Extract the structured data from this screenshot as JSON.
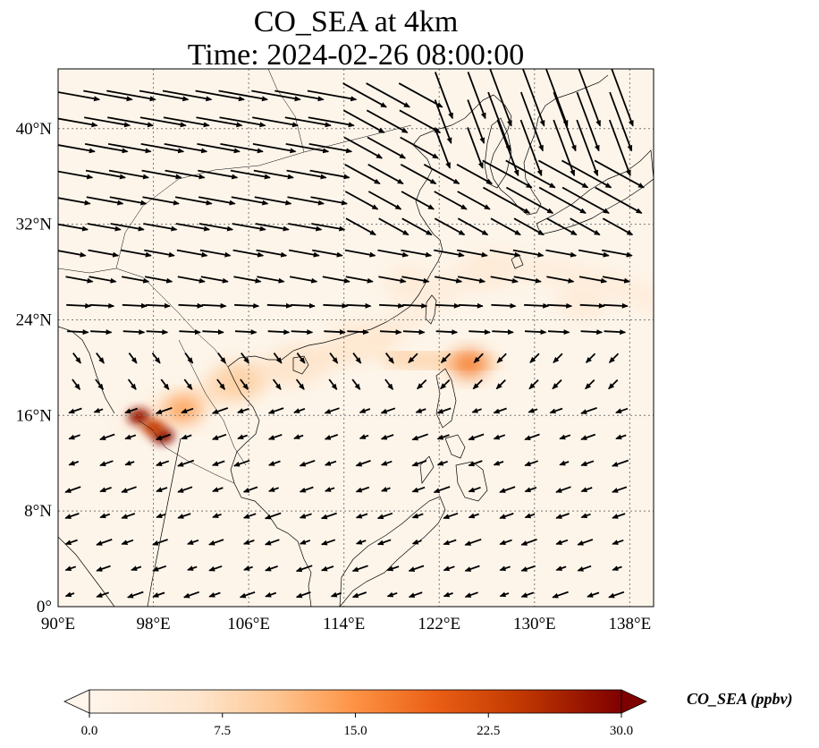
{
  "title": {
    "line1": "CO_SEA at 4km",
    "line2": "Time: 2024-02-26 08:00:00"
  },
  "map": {
    "extent": {
      "lon": [
        90,
        140
      ],
      "lat": [
        0,
        45
      ]
    },
    "lon_ticks": [
      {
        "value": 90,
        "label": "90°E"
      },
      {
        "value": 98,
        "label": "98°E"
      },
      {
        "value": 106,
        "label": "106°E"
      },
      {
        "value": 114,
        "label": "114°E"
      },
      {
        "value": 122,
        "label": "122°E"
      },
      {
        "value": 130,
        "label": "130°E"
      },
      {
        "value": 138,
        "label": "138°E"
      }
    ],
    "lat_ticks": [
      {
        "value": 0,
        "label": "0°"
      },
      {
        "value": 8,
        "label": "8°N"
      },
      {
        "value": 16,
        "label": "16°N"
      },
      {
        "value": 24,
        "label": "24°N"
      },
      {
        "value": 32,
        "label": "32°N"
      },
      {
        "value": 40,
        "label": "40°N"
      }
    ],
    "gridlines": "dotted",
    "background_color": "#fdf5ea",
    "plumes": [
      {
        "lon": 96.8,
        "lat": 15.9,
        "value": 28
      },
      {
        "lon": 98.8,
        "lat": 14.3,
        "value": 29
      },
      {
        "lon": 98.0,
        "lat": 15.0,
        "value": 24
      },
      {
        "lon": 100.5,
        "lat": 16.5,
        "value": 14
      },
      {
        "lon": 105,
        "lat": 18.8,
        "value": 9
      },
      {
        "lon": 110,
        "lat": 20.2,
        "value": 6
      },
      {
        "lon": 115,
        "lat": 22.3,
        "value": 5
      },
      {
        "lon": 124.5,
        "lat": 20.3,
        "value": 17
      },
      {
        "lon": 119.5,
        "lat": 27.0,
        "value": 4
      },
      {
        "lon": 126,
        "lat": 28.2,
        "value": 4
      },
      {
        "lon": 134,
        "lat": 25.5,
        "value": 4
      }
    ]
  },
  "colorbar": {
    "label": "CO_SEA (ppbv)",
    "ticks": [
      {
        "value": 0,
        "label": "0.0"
      },
      {
        "value": 7.5,
        "label": "7.5"
      },
      {
        "value": 15,
        "label": "15.0"
      },
      {
        "value": 22.5,
        "label": "22.5"
      },
      {
        "value": 30,
        "label": "30.0"
      }
    ],
    "range": [
      0,
      30
    ],
    "colors": [
      "#fff5eb",
      "#fdd9b4",
      "#fda762",
      "#f3701b",
      "#c54102",
      "#7f2704"
    ],
    "extend": "both"
  },
  "wind_vectors": "northwesterly to westerly flow north of 20°N, easterly to northeasterly flow south of 20°N"
}
